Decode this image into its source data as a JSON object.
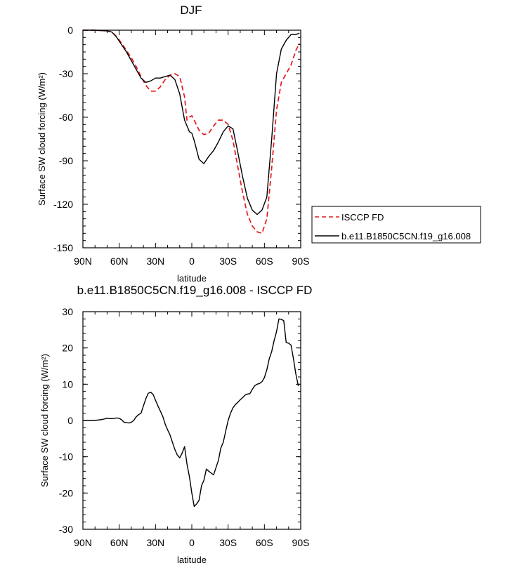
{
  "chart_data": [
    {
      "type": "line",
      "title": "DJF",
      "xlabel": "latitude",
      "ylabel": "Surface SW cloud forcing (W/m²)",
      "xlim": [
        90,
        -90
      ],
      "ylim": [
        -150,
        0
      ],
      "xticks": [
        90,
        60,
        30,
        0,
        -30,
        -60,
        -90
      ],
      "xtick_labels": [
        "90N",
        "60N",
        "30N",
        "0",
        "30S",
        "60S",
        "90S"
      ],
      "yticks": [
        0,
        -30,
        -60,
        -90,
        -120,
        -150
      ],
      "ytick_labels": [
        "0",
        "-30",
        "-60",
        "-90",
        "-120",
        "-150"
      ],
      "legend_position": "right",
      "series": [
        {
          "name": "ISCCP FD",
          "color": "#e41a1c",
          "dash": "dashed",
          "x": [
            90,
            80,
            70,
            66,
            62,
            58,
            54,
            50,
            46,
            42,
            38,
            34,
            30,
            26,
            22,
            18,
            14,
            10,
            6,
            4,
            2,
            0,
            -2,
            -6,
            -10,
            -14,
            -18,
            -22,
            -26,
            -30,
            -34,
            -38,
            -42,
            -46,
            -50,
            -54,
            -58,
            -62,
            -66,
            -70,
            -74,
            -78,
            -82,
            -86,
            -89
          ],
          "y": [
            0,
            0,
            -0.4,
            -1.3,
            -4.5,
            -9,
            -14,
            -19,
            -25,
            -32,
            -38,
            -42,
            -42,
            -39,
            -34,
            -31,
            -30,
            -32,
            -46,
            -62,
            -60,
            -59,
            -62,
            -69,
            -72,
            -71,
            -66,
            -62,
            -62,
            -65,
            -76,
            -94,
            -112,
            -127,
            -135,
            -139,
            -140,
            -130,
            -95,
            -55,
            -36,
            -30,
            -24,
            -14,
            -9
          ]
        },
        {
          "name": "b.e11.B1850C5CN.f19_g16.008",
          "color": "#000000",
          "dash": "solid",
          "x": [
            90,
            80,
            70,
            66,
            62,
            58,
            54,
            50,
            46,
            42,
            38,
            34,
            30,
            26,
            22,
            18,
            14,
            10,
            6,
            2,
            0,
            -2,
            -6,
            -10,
            -14,
            -18,
            -22,
            -26,
            -30,
            -34,
            -38,
            -42,
            -46,
            -50,
            -54,
            -58,
            -62,
            -66,
            -70,
            -74,
            -78,
            -82,
            -86,
            -89
          ],
          "y": [
            0,
            0,
            -0.5,
            -1.3,
            -5,
            -10,
            -15,
            -21,
            -27,
            -33,
            -36,
            -35,
            -33,
            -33,
            -32,
            -31,
            -34,
            -44,
            -62,
            -70,
            -71,
            -76,
            -89,
            -92,
            -87,
            -83,
            -77,
            -70,
            -66,
            -68,
            -84,
            -101,
            -116,
            -124,
            -127,
            -124,
            -115,
            -75,
            -30,
            -13,
            -7,
            -3,
            -3,
            -2
          ]
        }
      ]
    },
    {
      "type": "line",
      "title": "b.e11.B1850C5CN.f19_g16.008 - ISCCP FD",
      "xlabel": "latitude",
      "ylabel": "Surface SW cloud forcing (W/m²)",
      "xlim": [
        90,
        -90
      ],
      "ylim": [
        -30,
        30
      ],
      "xticks": [
        90,
        60,
        30,
        0,
        -30,
        -60,
        -90
      ],
      "xtick_labels": [
        "90N",
        "60N",
        "30N",
        "0",
        "30S",
        "60S",
        "90S"
      ],
      "yticks": [
        30,
        20,
        10,
        0,
        -10,
        -20,
        -30
      ],
      "ytick_labels": [
        "30",
        "20",
        "10",
        "0",
        "-10",
        "-20",
        "-30"
      ],
      "series": [
        {
          "color": "#000000",
          "dash": "solid",
          "x": [
            90,
            86,
            82,
            78,
            74,
            70,
            66,
            62,
            60,
            58,
            56,
            54,
            52,
            50,
            48,
            46,
            44,
            42,
            40,
            38,
            36,
            34,
            32,
            30,
            28,
            26,
            24,
            22,
            20,
            18,
            16,
            14,
            12,
            10,
            8,
            6,
            4,
            2,
            0,
            -2,
            -4,
            -6,
            -8,
            -10,
            -12,
            -14,
            -16,
            -18,
            -20,
            -22,
            -24,
            -26,
            -28,
            -30,
            -32,
            -34,
            -36,
            -38,
            -40,
            -42,
            -44,
            -46,
            -48,
            -50,
            -52,
            -54,
            -56,
            -58,
            -60,
            -62,
            -64,
            -66,
            -68,
            -70,
            -72,
            -74,
            -76,
            -78,
            -80,
            -82,
            -84,
            -86,
            -88
          ],
          "y": [
            0,
            0,
            0,
            0.1,
            0.3,
            0.6,
            0.5,
            0.7,
            0.6,
            0.2,
            -0.5,
            -0.6,
            -0.7,
            -0.5,
            0,
            1,
            1.6,
            2,
            4,
            6,
            7.5,
            7.8,
            7.2,
            5.6,
            4,
            2.6,
            1.1,
            -1,
            -2.6,
            -4,
            -6,
            -8,
            -9.5,
            -10.3,
            -9,
            -7.2,
            -12,
            -15.5,
            -20,
            -23.7,
            -23,
            -22,
            -18,
            -16.5,
            -13.4,
            -14,
            -14.5,
            -15,
            -13,
            -11,
            -7.6,
            -6,
            -3,
            0,
            2,
            3.5,
            4.4,
            5,
            5.7,
            6.3,
            7,
            7.3,
            7.4,
            8.6,
            9.6,
            10,
            10.2,
            10.7,
            11.8,
            14,
            17,
            19,
            22,
            24.5,
            28,
            27.9,
            27.5,
            21.5,
            21.3,
            20.8,
            17,
            12.8,
            9.5
          ]
        }
      ]
    }
  ]
}
